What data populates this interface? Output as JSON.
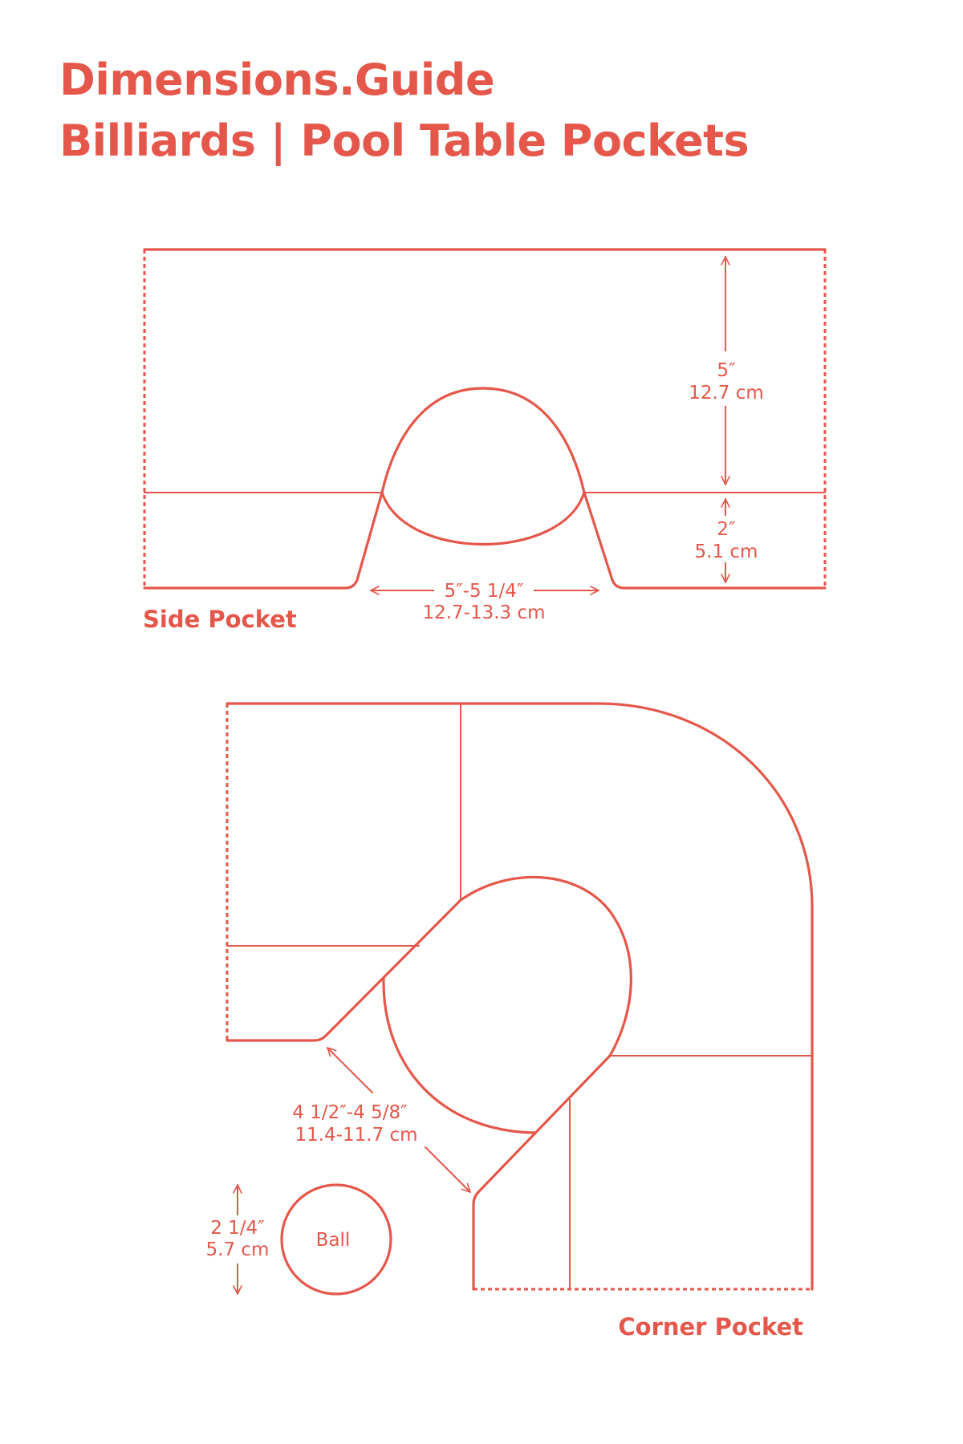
{
  "header": {
    "brand": "Dimensions.Guide",
    "title": "Billiards | Pool Table Pockets"
  },
  "side_pocket": {
    "label": "Side Pocket",
    "height_in": "5″",
    "height_cm": "12.7 cm",
    "rail_in": "2″",
    "rail_cm": "5.1 cm",
    "width_in": "5″-5 1/4″",
    "width_cm": "12.7-13.3 cm"
  },
  "corner_pocket": {
    "label": "Corner Pocket",
    "mouth_in": "4 1/2″-4 5/8″",
    "mouth_cm": "11.4-11.7 cm"
  },
  "ball": {
    "label": "Ball",
    "diameter_in": "2 1/4″",
    "diameter_cm": "5.7 cm"
  },
  "colors": {
    "accent": "#e4574a",
    "background": "#ffffff"
  }
}
